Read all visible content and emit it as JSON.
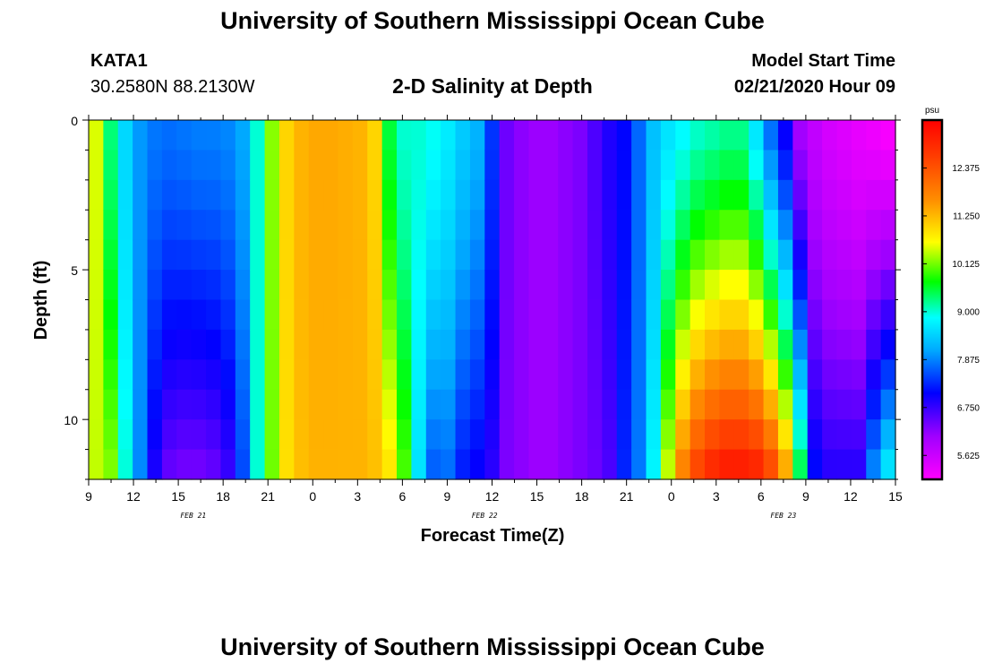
{
  "header": {
    "title": "University of Southern Mississippi Ocean Cube",
    "station": "KATA1",
    "coordinates": "30.2580N 88.2130W",
    "subtitle": "2-D Salinity at Depth",
    "model_start_label": "Model Start Time",
    "model_start_value": "02/21/2020 Hour 09"
  },
  "footer": {
    "title": "University of Southern Mississippi Ocean Cube"
  },
  "chart_data": {
    "type": "heatmap",
    "title": "2-D Salinity at Depth",
    "xlabel": "Forecast Time(Z)",
    "ylabel": "Depth (ft)",
    "x_range_hours": [
      0,
      54
    ],
    "y_range_ft": [
      0,
      12
    ],
    "x_tick_labels": [
      "9",
      "12",
      "15",
      "18",
      "21",
      "0",
      "3",
      "6",
      "9",
      "12",
      "15",
      "18",
      "21",
      "0",
      "3",
      "6",
      "9",
      "12",
      "15"
    ],
    "date_labels": [
      {
        "text": "FEB  21",
        "hour": 7
      },
      {
        "text": "FEB  22",
        "hour": 26.5
      },
      {
        "text": "FEB  23",
        "hour": 46.5
      }
    ],
    "y_ticks": [
      0,
      5,
      10
    ],
    "y_tick_labels": [
      "0",
      "5",
      "10"
    ],
    "colorbar": {
      "unit": "psu",
      "min": 5.0625,
      "max": 13.5,
      "labels": [
        "12.375",
        "11.250",
        "10.125",
        "9.000",
        "7.875",
        "6.750",
        "5.625"
      ],
      "label_values": [
        12.375,
        11.25,
        10.125,
        9.0,
        7.875,
        6.75,
        5.625
      ]
    },
    "depth_rows_ft": [
      0.5,
      1.5,
      2.5,
      3.5,
      4.5,
      5.5,
      6.5,
      7.5,
      8.5,
      9.5,
      10.5,
      11.5
    ],
    "profiles": [
      {
        "hour": 0,
        "surface": 10.5,
        "bottom": 10.4
      },
      {
        "hour": 1,
        "surface": 9.3,
        "bottom": 10.2
      },
      {
        "hour": 2,
        "surface": 8.5,
        "bottom": 9.0
      },
      {
        "hour": 3,
        "surface": 8.0,
        "bottom": 7.9
      },
      {
        "hour": 4,
        "surface": 7.8,
        "bottom": 6.9
      },
      {
        "hour": 5,
        "surface": 7.75,
        "bottom": 6.4
      },
      {
        "hour": 6,
        "surface": 7.8,
        "bottom": 6.3
      },
      {
        "hour": 7,
        "surface": 7.85,
        "bottom": 6.3
      },
      {
        "hour": 8,
        "surface": 7.85,
        "bottom": 6.4
      },
      {
        "hour": 9,
        "surface": 7.9,
        "bottom": 6.7
      },
      {
        "hour": 10,
        "surface": 8.1,
        "bottom": 7.5
      },
      {
        "hour": 11,
        "surface": 9.0,
        "bottom": 9.0
      },
      {
        "hour": 12,
        "surface": 10.2,
        "bottom": 10.1
      },
      {
        "hour": 13,
        "surface": 11.0,
        "bottom": 10.9
      },
      {
        "hour": 14,
        "surface": 11.3,
        "bottom": 11.2
      },
      {
        "hour": 15,
        "surface": 11.4,
        "bottom": 11.3
      },
      {
        "hour": 16,
        "surface": 11.4,
        "bottom": 11.3
      },
      {
        "hour": 17,
        "surface": 11.35,
        "bottom": 11.3
      },
      {
        "hour": 18,
        "surface": 11.3,
        "bottom": 11.3
      },
      {
        "hour": 19,
        "surface": 11.0,
        "bottom": 11.2
      },
      {
        "hour": 20,
        "surface": 9.5,
        "bottom": 10.9
      },
      {
        "hour": 21,
        "surface": 9.0,
        "bottom": 10.0
      },
      {
        "hour": 22,
        "surface": 9.0,
        "bottom": 8.6
      },
      {
        "hour": 23,
        "surface": 8.9,
        "bottom": 7.6
      },
      {
        "hour": 24,
        "surface": 8.7,
        "bottom": 7.7
      },
      {
        "hour": 25,
        "surface": 8.4,
        "bottom": 7.2
      },
      {
        "hour": 26,
        "surface": 8.2,
        "bottom": 7.0
      },
      {
        "hour": 27,
        "surface": 7.4,
        "bottom": 6.8
      },
      {
        "hour": 28,
        "surface": 6.4,
        "bottom": 6.3
      },
      {
        "hour": 29,
        "surface": 6.2,
        "bottom": 6.2
      },
      {
        "hour": 30,
        "surface": 6.1,
        "bottom": 6.1
      },
      {
        "hour": 31,
        "surface": 6.1,
        "bottom": 6.1
      },
      {
        "hour": 32,
        "surface": 6.2,
        "bottom": 6.2
      },
      {
        "hour": 33,
        "surface": 6.3,
        "bottom": 6.3
      },
      {
        "hour": 34,
        "surface": 6.6,
        "bottom": 6.4
      },
      {
        "hour": 35,
        "surface": 6.9,
        "bottom": 6.6
      },
      {
        "hour": 36,
        "surface": 7.1,
        "bottom": 7.3
      },
      {
        "hour": 37,
        "surface": 7.7,
        "bottom": 7.8
      },
      {
        "hour": 38,
        "surface": 8.3,
        "bottom": 8.8
      },
      {
        "hour": 39,
        "surface": 8.6,
        "bottom": 10.5
      },
      {
        "hour": 40,
        "surface": 8.8,
        "bottom": 11.9
      },
      {
        "hour": 41,
        "surface": 9.0,
        "bottom": 12.7
      },
      {
        "hour": 42,
        "surface": 9.1,
        "bottom": 13.1
      },
      {
        "hour": 43,
        "surface": 9.2,
        "bottom": 13.3
      },
      {
        "hour": 44,
        "surface": 9.2,
        "bottom": 13.3
      },
      {
        "hour": 45,
        "surface": 8.6,
        "bottom": 13.2
      },
      {
        "hour": 46,
        "surface": 7.7,
        "bottom": 12.7
      },
      {
        "hour": 47,
        "surface": 7.0,
        "bottom": 11.6
      },
      {
        "hour": 48,
        "surface": 6.0,
        "bottom": 9.6
      },
      {
        "hour": 49,
        "surface": 5.7,
        "bottom": 7.2
      },
      {
        "hour": 50,
        "surface": 5.5,
        "bottom": 6.9
      },
      {
        "hour": 51,
        "surface": 5.4,
        "bottom": 6.9
      },
      {
        "hour": 52,
        "surface": 5.3,
        "bottom": 6.9
      },
      {
        "hour": 53,
        "surface": 5.2,
        "bottom": 8.0
      },
      {
        "hour": 54,
        "surface": 5.1,
        "bottom": 8.8
      }
    ]
  }
}
